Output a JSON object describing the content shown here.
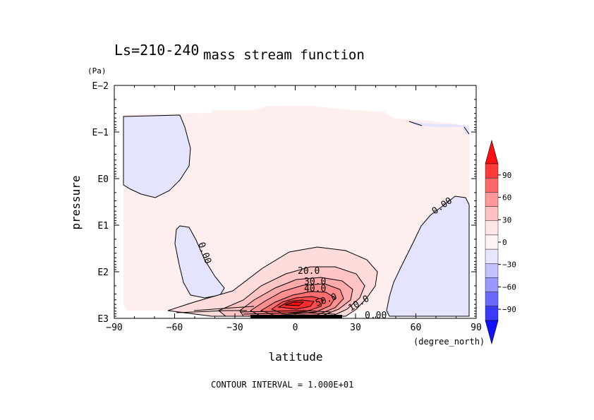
{
  "chart_data": {
    "type": "contour",
    "title": "mass stream function",
    "subtitle": "Ls=210-240",
    "xlabel": "latitude",
    "x_unit": "(degree_north)",
    "ylabel": "pressure",
    "y_unit": "(Pa)",
    "x_ticks": [
      "−90",
      "−60",
      "−30",
      "0",
      "30",
      "60",
      "90"
    ],
    "x_range": [
      -90,
      90
    ],
    "y_ticks": [
      "E−2",
      "E−1",
      "E0",
      "E1",
      "E2",
      "E3"
    ],
    "y_scale": "log",
    "y_range_log10": [
      -2,
      3
    ],
    "contour_interval_text": "CONTOUR INTERVAL = 1.000E+01",
    "contour_labels": [
      {
        "text": "20.0",
        "lat": 0,
        "p_log10": 2.0
      },
      {
        "text": "30.0",
        "lat": 3,
        "p_log10": 2.2
      },
      {
        "text": "40.0",
        "lat": 3,
        "p_log10": 2.35
      },
      {
        "text": "50.0",
        "lat": 5,
        "p_log10": 2.72
      },
      {
        "text": "10.0",
        "lat": 27,
        "p_log10": 2.72
      },
      {
        "text": "0.00",
        "lat": 40,
        "p_log10": 2.93
      },
      {
        "text": "0.00",
        "lat": -40,
        "p_log10": 1.55
      },
      {
        "text": "0.00",
        "lat": 63,
        "p_log10": 0.55
      }
    ],
    "max_center": {
      "lat": 0,
      "p_log10": 2.6
    },
    "colorbar": {
      "labels": [
        "90",
        "60",
        "30",
        "0",
        "−30",
        "−60",
        "−90"
      ],
      "levels": [
        90,
        60,
        30,
        0,
        -30,
        -60,
        -90
      ],
      "colors": [
        "#ff1010",
        "#ff3a3a",
        "#ff6868",
        "#ff9898",
        "#ffc2c2",
        "#ffe6e6",
        "#fff4f4",
        "#e6e6ff",
        "#c2c2ff",
        "#9898ff",
        "#6868ff",
        "#3a3aff",
        "#1010ff"
      ]
    }
  }
}
